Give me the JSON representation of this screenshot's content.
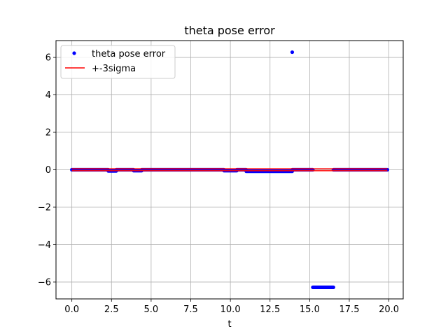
{
  "chart_data": {
    "type": "scatter",
    "title": "theta pose error",
    "xlabel": "t",
    "ylabel": "",
    "xlim": [
      -1.0,
      20.9
    ],
    "ylim": [
      -6.9,
      6.9
    ],
    "xticks": [
      0.0,
      2.5,
      5.0,
      7.5,
      10.0,
      12.5,
      15.0,
      17.5,
      20.0
    ],
    "xtick_labels": [
      "0.0",
      "2.5",
      "5.0",
      "7.5",
      "10.0",
      "12.5",
      "15.0",
      "17.5",
      "20.0"
    ],
    "yticks": [
      -6,
      -4,
      -2,
      0,
      2,
      4,
      6
    ],
    "ytick_labels": [
      "−6",
      "−4",
      "−2",
      "0",
      "2",
      "4",
      "6"
    ],
    "grid": true,
    "legend": {
      "placement": "upper-left",
      "entries": [
        {
          "label": "theta pose error",
          "marker": "dot",
          "color": "#0000ff"
        },
        {
          "label": "+-3sigma",
          "marker": "line",
          "color": "#ff0000"
        }
      ]
    },
    "series": [
      {
        "name": "theta pose error",
        "style": "dots",
        "color": "#0000ff",
        "segments": [
          {
            "x_start": 0.0,
            "x_end": 2.3,
            "y": 0.0
          },
          {
            "x_start": 2.3,
            "x_end": 2.8,
            "y": -0.06
          },
          {
            "x_start": 2.8,
            "x_end": 3.9,
            "y": 0.0
          },
          {
            "x_start": 3.9,
            "x_end": 4.4,
            "y": -0.05
          },
          {
            "x_start": 4.4,
            "x_end": 9.6,
            "y": 0.0
          },
          {
            "x_start": 9.6,
            "x_end": 10.4,
            "y": -0.05
          },
          {
            "x_start": 10.4,
            "x_end": 11.0,
            "y": 0.0
          },
          {
            "x_start": 11.0,
            "x_end": 13.9,
            "y": -0.08
          },
          {
            "x_start": 13.9,
            "x_end": 15.2,
            "y": 0.0
          },
          {
            "x_start": 15.2,
            "x_end": 16.5,
            "y": -6.28
          },
          {
            "x_start": 16.5,
            "x_end": 19.9,
            "y": 0.0
          }
        ],
        "points": [
          {
            "x": 13.9,
            "y": 6.28
          }
        ]
      },
      {
        "name": "+-3sigma",
        "style": "line",
        "color": "#ff0000",
        "upper": {
          "x": [
            0.0,
            19.9
          ],
          "y": [
            0.05,
            0.05
          ]
        },
        "lower": {
          "x": [
            0.0,
            19.9
          ],
          "y": [
            -0.05,
            -0.05
          ]
        }
      }
    ]
  }
}
